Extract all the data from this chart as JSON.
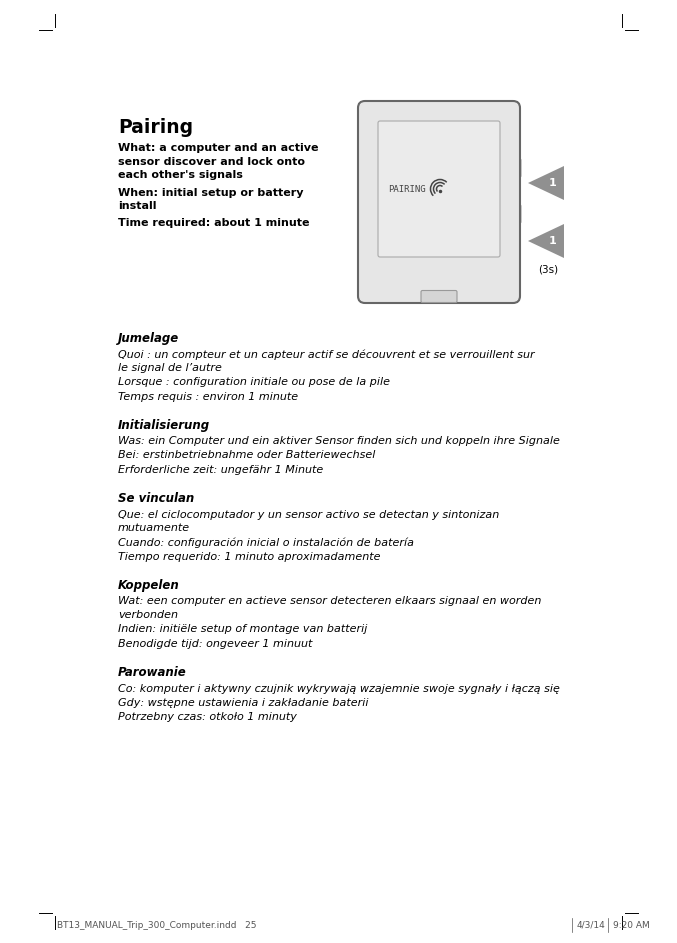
{
  "bg_color": "#ffffff",
  "text_color": "#000000",
  "title": "Pairing",
  "en_bold_lines": [
    "What: a computer and an active\nsensor discover and lock onto\neach other's signals",
    "When: initial setup or battery\ninstall",
    "Time required: about 1 minute"
  ],
  "sections": [
    {
      "lang_title": "Jumelage",
      "lines": [
        "Quoi : un compteur et un capteur actif se découvrent et se verrouillent sur\nle signal de l’autre",
        "Lorsque : configuration initiale ou pose de la pile",
        "Temps requis : environ 1 minute"
      ]
    },
    {
      "lang_title": "Initialisierung",
      "lines": [
        "Was: ein Computer und ein aktiver Sensor finden sich und koppeln ihre Signale",
        "Bei: erstinbetriebnahme oder Batteriewechsel",
        "Erforderliche zeit: ungefähr 1 Minute"
      ]
    },
    {
      "lang_title": "Se vinculan",
      "lines": [
        "Que: el ciclocomputador y un sensor activo se detectan y sintonizan\nmutuamente",
        "Cuando: configuración inicial o instalación de batería",
        "Tiempo requerido: 1 minuto aproximadamente"
      ]
    },
    {
      "lang_title": "Koppelen",
      "lines": [
        "Wat: een computer en actieve sensor detecteren elkaars signaal en worden\nverbonden",
        "Indien: initiële setup of montage van batterij",
        "Benodigde tijd: ongeveer 1 minuut"
      ]
    },
    {
      "lang_title": "Parowanie",
      "lines": [
        "Co: komputer i aktywny czujnik wykrywają wzajemnie swoje sygnały i łączą się",
        "Gdy: wstępne ustawienia i zakładanie baterii",
        "Potrzebny czas: otkoło 1 minuty"
      ]
    }
  ],
  "footer_left": "BT13_MANUAL_Trip_300_Computer.indd   25",
  "footer_date": "4/3/14",
  "footer_time": "9:20 AM",
  "device_fill": "#e6e6e6",
  "device_stroke": "#666666",
  "screen_fill": "#ebebeb",
  "button_fill": "#909090"
}
